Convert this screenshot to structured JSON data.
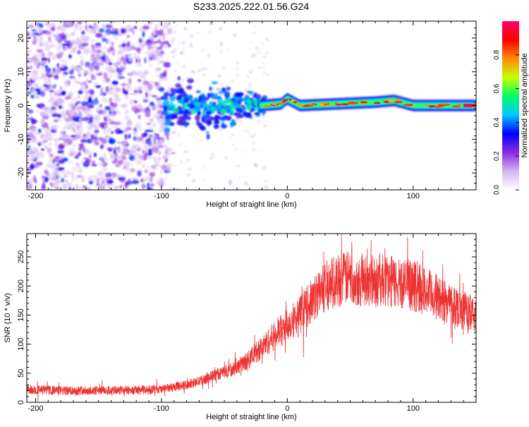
{
  "title": "S233.2025.222.01.56.G24",
  "chart_data": [
    {
      "type": "heatmap",
      "title": "S233.2025.222.01.56.G24",
      "xlabel": "Height of straight line (km)",
      "ylabel": "Frequency (Hz)",
      "xlim": [
        -207,
        150
      ],
      "ylim": [
        -25,
        25
      ],
      "xticks": [
        -200,
        -100,
        0,
        100
      ],
      "xtick_labels": [
        "-200",
        "-100",
        "0",
        "100"
      ],
      "yticks": [
        -20,
        -10,
        0,
        10,
        20
      ],
      "ytick_labels": [
        "-20",
        "-10",
        "0",
        "10",
        "20"
      ],
      "colorbar": {
        "label": "Normalized spectral amplitude",
        "range": [
          0,
          1
        ],
        "ticks": [
          0.0,
          0.2,
          0.4,
          0.6,
          0.8
        ],
        "tick_labels": [
          "0.0",
          "0.2",
          "0.4",
          "0.6",
          "0.8"
        ],
        "colormap": [
          "#ffffff",
          "#d2b4f0",
          "#8a2be2",
          "#0000ff",
          "#00c8ff",
          "#00ff66",
          "#c8ff00",
          "#ff8800",
          "#ff0000",
          "#ff0066"
        ]
      },
      "regions": [
        {
          "name": "noise",
          "x_range": [
            -207,
            -100
          ],
          "freq_range": [
            -25,
            25
          ],
          "amplitude": "low (0.05-0.3)"
        },
        {
          "name": "transition",
          "x_range": [
            -100,
            -20
          ],
          "freq_range": [
            -8,
            8
          ],
          "amplitude": "0.3-0.5"
        },
        {
          "name": "tone",
          "x_range": [
            -20,
            150
          ],
          "freq_range": [
            -1,
            2
          ],
          "amplitude": "0.6-1.0"
        }
      ],
      "tone_centerline": [
        {
          "x": -20,
          "f": 0.0
        },
        {
          "x": -5,
          "f": 0.5
        },
        {
          "x": 0,
          "f": 2.0
        },
        {
          "x": 10,
          "f": 0.0
        },
        {
          "x": 40,
          "f": 0.5
        },
        {
          "x": 70,
          "f": 1.0
        },
        {
          "x": 85,
          "f": 1.5
        },
        {
          "x": 100,
          "f": 0.0
        },
        {
          "x": 150,
          "f": 0.0
        }
      ]
    },
    {
      "type": "line",
      "xlabel": "Height of straight line (km)",
      "ylabel": "SNR (10 * v/v)",
      "xlim": [
        -207,
        150
      ],
      "ylim": [
        0,
        290
      ],
      "xticks": [
        -200,
        -100,
        0,
        100
      ],
      "xtick_labels": [
        "-200",
        "-100",
        "0",
        "100"
      ],
      "yticks": [
        0,
        50,
        100,
        150,
        200,
        250
      ],
      "ytick_labels": [
        "0",
        "50",
        "100",
        "150",
        "200",
        "250"
      ],
      "series": [
        {
          "name": "SNR",
          "color": "#ee3333",
          "x": [
            -207,
            -180,
            -150,
            -120,
            -100,
            -90,
            -80,
            -70,
            -60,
            -50,
            -40,
            -30,
            -20,
            -10,
            0,
            10,
            20,
            30,
            40,
            50,
            60,
            70,
            80,
            90,
            100,
            110,
            120,
            130,
            140,
            150
          ],
          "y": [
            22,
            20,
            20,
            21,
            22,
            26,
            30,
            36,
            45,
            52,
            60,
            75,
            95,
            115,
            135,
            150,
            175,
            200,
            210,
            215,
            210,
            210,
            208,
            205,
            200,
            190,
            180,
            170,
            160,
            145
          ]
        }
      ]
    }
  ]
}
